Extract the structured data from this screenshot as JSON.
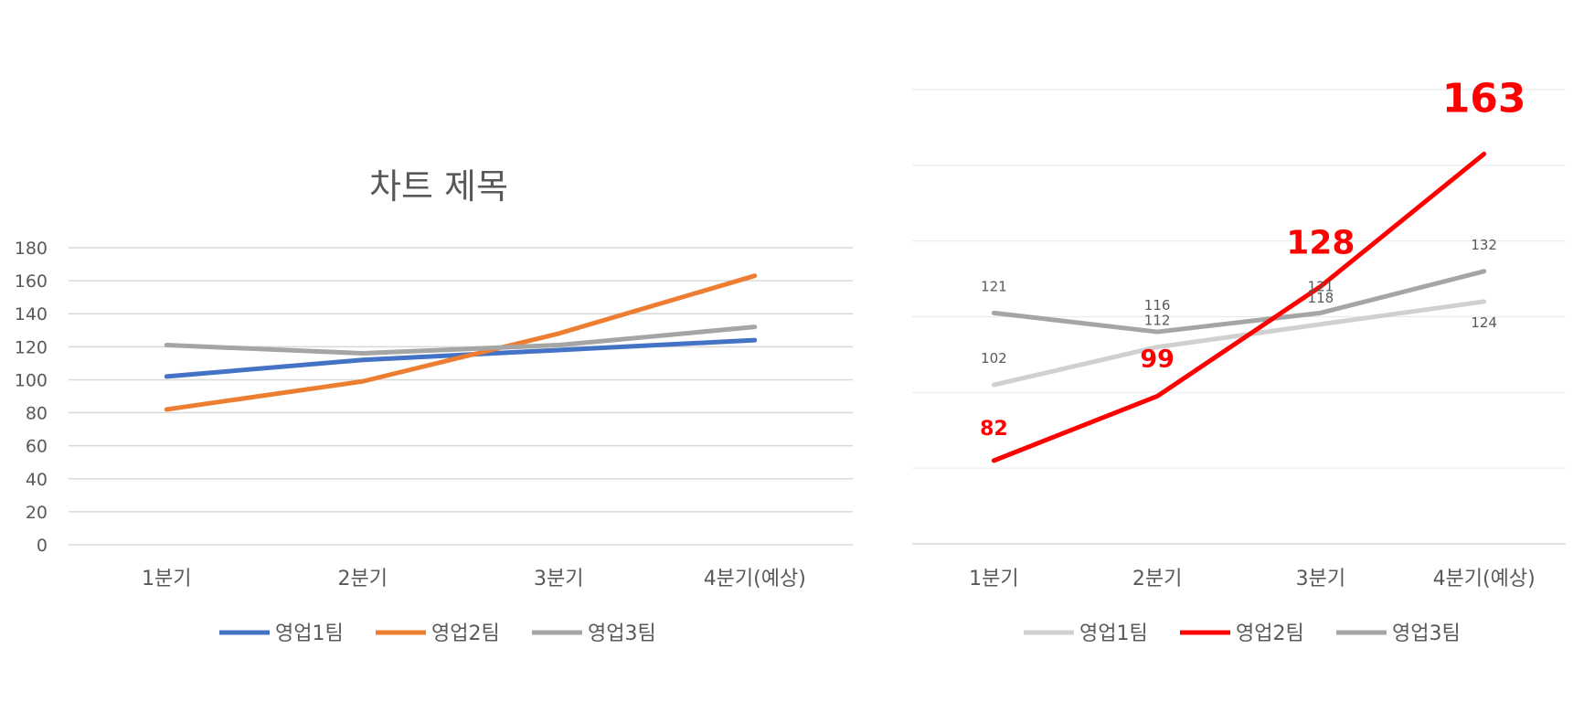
{
  "chart_data": [
    {
      "type": "line",
      "title": "차트 제목",
      "categories": [
        "1분기",
        "2분기",
        "3분기",
        "4분기(예상)"
      ],
      "ylim": [
        0,
        180
      ],
      "yticks": [
        0,
        20,
        40,
        60,
        80,
        100,
        120,
        140,
        160,
        180
      ],
      "grid": true,
      "legend": "bottom",
      "series": [
        {
          "name": "영업1팀",
          "values": [
            102,
            112,
            118,
            124
          ],
          "color": "#4472C4"
        },
        {
          "name": "영업2팀",
          "values": [
            82,
            99,
            128,
            163
          ],
          "color": "#ED7D31"
        },
        {
          "name": "영업3팀",
          "values": [
            121,
            116,
            121,
            132
          ],
          "color": "#A5A5A5"
        }
      ]
    },
    {
      "type": "line",
      "categories": [
        "1분기",
        "2분기",
        "3분기",
        "4분기(예상)"
      ],
      "ylim": [
        60,
        180
      ],
      "grid": true,
      "legend": "bottom",
      "data_labels": true,
      "series": [
        {
          "name": "영업1팀",
          "values": [
            102,
            112,
            118,
            124
          ],
          "color": "#D0D0D0"
        },
        {
          "name": "영업2팀",
          "values": [
            82,
            99,
            128,
            163
          ],
          "color": "#FF0000"
        },
        {
          "name": "영업3팀",
          "values": [
            121,
            116,
            121,
            132
          ],
          "color": "#A5A5A5"
        }
      ]
    }
  ]
}
